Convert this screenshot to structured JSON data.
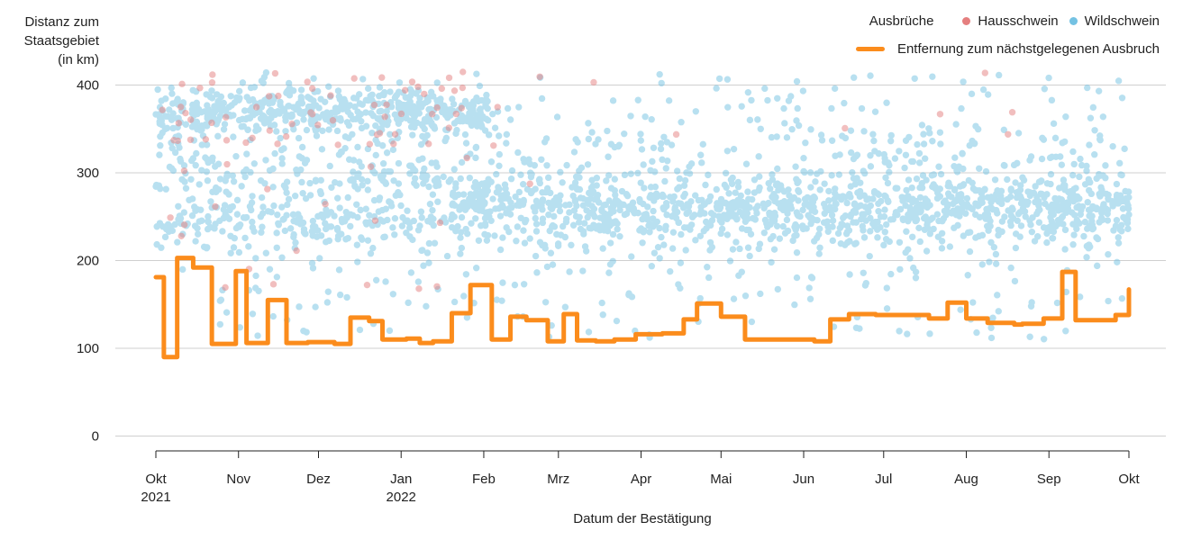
{
  "chart_data": {
    "type": "scatter",
    "ylabel_lines": [
      "Distanz zum",
      "Staatsgebiet",
      "(in km)"
    ],
    "xlabel": "Datum der Bestätigung",
    "ylim": [
      0,
      415
    ],
    "yticks": [
      0,
      100,
      200,
      300,
      400
    ],
    "xlim": [
      0,
      365
    ],
    "xticks": [
      {
        "pos": 0,
        "label": "Okt",
        "sublabel": "2021"
      },
      {
        "pos": 31,
        "label": "Nov",
        "sublabel": ""
      },
      {
        "pos": 61,
        "label": "Dez",
        "sublabel": ""
      },
      {
        "pos": 92,
        "label": "Jan",
        "sublabel": "2022"
      },
      {
        "pos": 123,
        "label": "Feb",
        "sublabel": ""
      },
      {
        "pos": 151,
        "label": "Mrz",
        "sublabel": ""
      },
      {
        "pos": 182,
        "label": "Apr",
        "sublabel": ""
      },
      {
        "pos": 212,
        "label": "Mai",
        "sublabel": ""
      },
      {
        "pos": 243,
        "label": "Jun",
        "sublabel": ""
      },
      {
        "pos": 273,
        "label": "Jul",
        "sublabel": ""
      },
      {
        "pos": 304,
        "label": "Aug",
        "sublabel": ""
      },
      {
        "pos": 335,
        "label": "Sep",
        "sublabel": ""
      },
      {
        "pos": 365,
        "label": "Okt",
        "sublabel": ""
      }
    ],
    "grid": "horizontal",
    "legend": {
      "title": "Ausbrüche",
      "position": "top-right",
      "items": [
        {
          "name": "Hausschwein",
          "color": "#e57f7f"
        },
        {
          "name": "Wildschwein",
          "color": "#74c2e3"
        }
      ],
      "line_label": "Entfernung zum nächstgelegenen Ausbruch",
      "line_color": "#fb8c1c"
    },
    "series": [
      {
        "name": "Entfernung zum nächstgelegenen Ausbruch",
        "type": "step-line",
        "color": "#fb8c1c",
        "x": [
          0,
          3,
          8,
          14,
          21,
          30,
          34,
          42,
          49,
          57,
          67,
          73,
          80,
          85,
          94,
          99,
          104,
          111,
          118,
          126,
          133,
          139,
          147,
          153,
          158,
          165,
          172,
          180,
          190,
          198,
          203,
          212,
          221,
          232,
          247,
          253,
          260,
          270,
          284,
          290,
          297,
          304,
          312,
          322,
          325,
          333,
          340,
          345,
          360,
          365
        ],
        "values": [
          181,
          90,
          203,
          192,
          105,
          188,
          106,
          155,
          106,
          107,
          105,
          135,
          131,
          110,
          111,
          106,
          108,
          140,
          172,
          110,
          136,
          132,
          108,
          139,
          109,
          108,
          110,
          116,
          117,
          133,
          151,
          136,
          110,
          110,
          108,
          133,
          139,
          138,
          138,
          134,
          152,
          134,
          129,
          127,
          128,
          134,
          187,
          132,
          138,
          167
        ]
      }
    ],
    "scatter_series": [
      {
        "name": "Hausschwein",
        "color": "#e57f7f",
        "opacity": 0.5,
        "approx_count": 90,
        "y_range": [
          150,
          415
        ],
        "note_range": "mostly Oct–Feb, above 330"
      },
      {
        "name": "Wildschwein",
        "color": "#74c2e3",
        "opacity": 0.5,
        "approx_count": 2600,
        "y_range": [
          110,
          415
        ],
        "density_bands": [
          {
            "y": 370,
            "x_range": [
              0,
              125
            ],
            "weight": 3
          },
          {
            "y": 330,
            "x_range": [
              0,
              365
            ],
            "weight": 1
          },
          {
            "y": 290,
            "x_range": [
              0,
              365
            ],
            "weight": 2
          },
          {
            "y": 265,
            "x_range": [
              110,
              365
            ],
            "weight": 3
          },
          {
            "y": 250,
            "x_range": [
              0,
              365
            ],
            "weight": 3
          },
          {
            "y": 230,
            "x_range": [
              0,
              365
            ],
            "weight": 1
          }
        ]
      }
    ]
  }
}
